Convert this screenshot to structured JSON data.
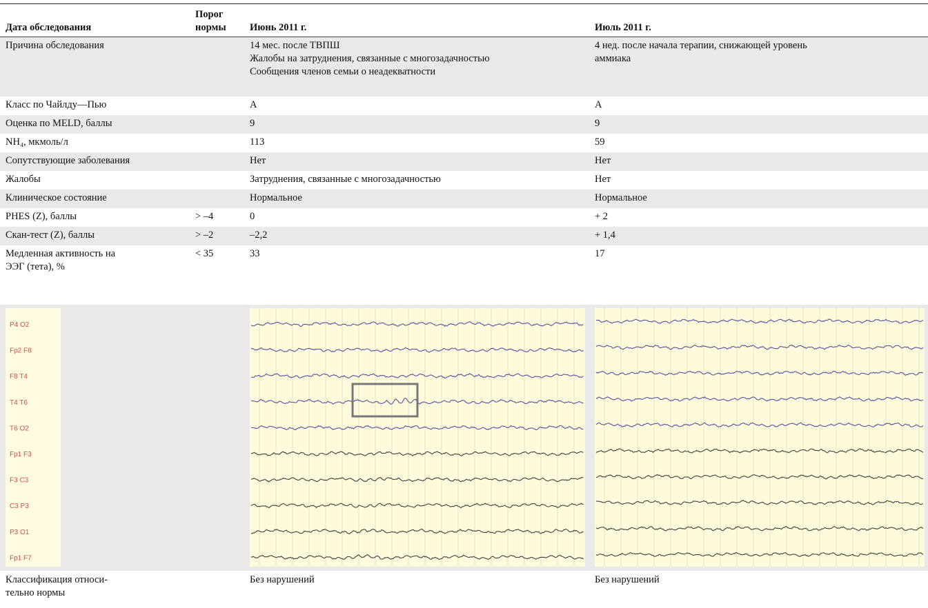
{
  "table": {
    "header": [
      "Дата обследования",
      "Порог\nнормы",
      "Июнь 2011 г.",
      "Июль 2011 г."
    ],
    "rows": [
      [
        "Причина обследования",
        null,
        "14 мес. после ТВПШ\nЖалобы на затруднения, связанные с многозадачностью\nСообщения членов семьи о неадекватности",
        "4 нед. после начала терапии, снижающей уровень\nаммиака"
      ],
      [
        "Класс по Чайлду—Пью",
        null,
        "A",
        "A"
      ],
      [
        "Оценка по MELD, баллы",
        null,
        "9",
        "9"
      ],
      [
        "NH₄, мкмоль/л",
        null,
        "113",
        "59"
      ],
      [
        "Сопутствующие заболевания",
        null,
        "Нет",
        "Нет"
      ],
      [
        "Жалобы",
        null,
        "Затруднения, связанные с многозадачностью",
        "Нет"
      ],
      [
        "Клиническое состояние",
        null,
        "Нормальное",
        "Нормальное"
      ],
      [
        "PHES (Z), баллы",
        "> –4",
        "0",
        "+ 2"
      ],
      [
        "Скан-тест (Z), баллы",
        "> –2",
        "–2,2",
        "+ 1,4"
      ],
      [
        "Медленная активность на\nЭЭГ (тета), %",
        "< 35",
        "33",
        "17"
      ]
    ],
    "eeg_channels": [
      "P4 O2",
      "Fp2 F8",
      "F8 T4",
      "T4 T6",
      "T6 O2",
      "Fp1 F3",
      "F3 C3",
      "C3 P3",
      "P3 O1",
      "Fp1 F7"
    ],
    "footer": [
      "Классификация относи-\nтельно нормы",
      null,
      "Без нарушений",
      "Без нарушений"
    ]
  }
}
